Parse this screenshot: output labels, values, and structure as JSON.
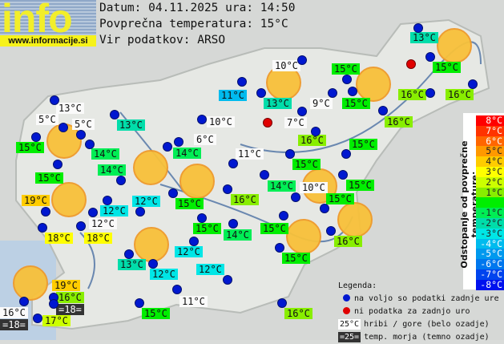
{
  "header": {
    "logo_text": "info",
    "logo_url": "www.informacije.si",
    "date_line": "Datum: 04.11.2025 ura: 14:50",
    "avg_line": "Povprečna temperatura: 15°C",
    "source_line": "Vir podatkov: ARSO"
  },
  "average_temperature": 15,
  "map": {
    "labels": [
      {
        "text": "13°C",
        "t": 13
      },
      {
        "text": "15°C",
        "t": 15
      },
      {
        "text": "15°C",
        "t": 15
      },
      {
        "text": "10°C",
        "type": "hill"
      },
      {
        "text": "11°C",
        "t": 11
      },
      {
        "text": "13°C",
        "t": 13
      },
      {
        "text": "9°C",
        "type": "hill"
      },
      {
        "text": "15°C",
        "t": 15
      },
      {
        "text": "16°C",
        "t": 16
      },
      {
        "text": "16°C",
        "t": 16
      },
      {
        "text": "13°C",
        "type": "hill"
      },
      {
        "text": "5°C",
        "type": "hill"
      },
      {
        "text": "5°C",
        "type": "hill"
      },
      {
        "text": "13°C",
        "t": 13
      },
      {
        "text": "10°C",
        "type": "hill"
      },
      {
        "text": "7°C",
        "type": "hill"
      },
      {
        "text": "16°C",
        "t": 16
      },
      {
        "text": "16°C",
        "t": 16
      },
      {
        "text": "6°C",
        "type": "hill"
      },
      {
        "text": "15°C",
        "t": 15
      },
      {
        "text": "14°C",
        "t": 14
      },
      {
        "text": "14°C",
        "t": 14
      },
      {
        "text": "11°C",
        "type": "hill"
      },
      {
        "text": "15°C",
        "t": 15
      },
      {
        "text": "14°C",
        "t": 14
      },
      {
        "text": "15°C",
        "t": 15
      },
      {
        "text": "15°C",
        "t": 15
      },
      {
        "text": "15°C",
        "t": 15
      },
      {
        "text": "14°C",
        "t": 14
      },
      {
        "text": "10°C",
        "type": "hill"
      },
      {
        "text": "15°C",
        "t": 15
      },
      {
        "text": "19°C",
        "t": 19
      },
      {
        "text": "12°C",
        "t": 12
      },
      {
        "text": "15°C",
        "t": 15
      },
      {
        "text": "16°C",
        "t": 16
      },
      {
        "text": "12°C",
        "t": 12
      },
      {
        "text": "12°C",
        "type": "hill"
      },
      {
        "text": "15°C",
        "t": 15
      },
      {
        "text": "14°C",
        "t": 14
      },
      {
        "text": "15°C",
        "t": 15
      },
      {
        "text": "16°C",
        "t": 16
      },
      {
        "text": "18°C",
        "t": 18
      },
      {
        "text": "18°C",
        "t": 18
      },
      {
        "text": "13°C",
        "t": 13
      },
      {
        "text": "12°C",
        "t": 12
      },
      {
        "text": "12°C",
        "t": 12
      },
      {
        "text": "12°C",
        "t": 12
      },
      {
        "text": "15°C",
        "t": 15
      },
      {
        "text": "19°C",
        "t": 19
      },
      {
        "text": "16°C",
        "t": 16
      },
      {
        "text": "=18=",
        "type": "sea"
      },
      {
        "text": "16°C",
        "type": "hill"
      },
      {
        "text": "=18=",
        "type": "sea"
      },
      {
        "text": "17°C",
        "t": 17
      },
      {
        "text": "11°C",
        "type": "hill"
      },
      {
        "text": "15°C",
        "t": 15
      },
      {
        "text": "16°C",
        "t": 16
      }
    ],
    "station_dot_color": "#0018d0",
    "missing_dot_color": "#e00000",
    "weather_icon": "sun-icon"
  },
  "scale": {
    "title": "Odstopanje od povprečne temperature:",
    "rows": [
      {
        "label": "8°C",
        "dev": 8,
        "color": "#ff0000"
      },
      {
        "label": "7°C",
        "dev": 7,
        "color": "#ff3300"
      },
      {
        "label": "6°C",
        "dev": 6,
        "color": "#ff6600"
      },
      {
        "label": "5°C",
        "dev": 5,
        "color": "#ff9900"
      },
      {
        "label": "4°C",
        "dev": 4,
        "color": "#ffcc00"
      },
      {
        "label": "3°C",
        "dev": 3,
        "color": "#ffff00"
      },
      {
        "label": "2°C",
        "dev": 2,
        "color": "#ccff00"
      },
      {
        "label": "1°C",
        "dev": 1,
        "color": "#88ee00"
      },
      {
        "label": "",
        "dev": 0,
        "color": "#00ee00"
      },
      {
        "label": "-1°C",
        "dev": -1,
        "color": "#00ee55"
      },
      {
        "label": "-2°C",
        "dev": -2,
        "color": "#00ddaa"
      },
      {
        "label": "-3°C",
        "dev": -3,
        "color": "#00e6e6"
      },
      {
        "label": "-4°C",
        "dev": -4,
        "color": "#00bbee"
      },
      {
        "label": "-5°C",
        "dev": -5,
        "color": "#0099ee"
      },
      {
        "label": "-6°C",
        "dev": -6,
        "color": "#0077ee"
      },
      {
        "label": "-7°C",
        "dev": -7,
        "color": "#0044ee"
      },
      {
        "label": "-8°C",
        "dev": -8,
        "color": "#0011ee"
      }
    ]
  },
  "legend": {
    "title": "Legenda:",
    "available": "na voljo so podatki zadnje ure",
    "missing": "ni podatka za zadnjo uro",
    "hill_sample": "25°C",
    "hill_text": "hribi / gore (belo ozadje)",
    "sea_sample": "=25=",
    "sea_text": "temp. morja (temno ozadje)"
  }
}
